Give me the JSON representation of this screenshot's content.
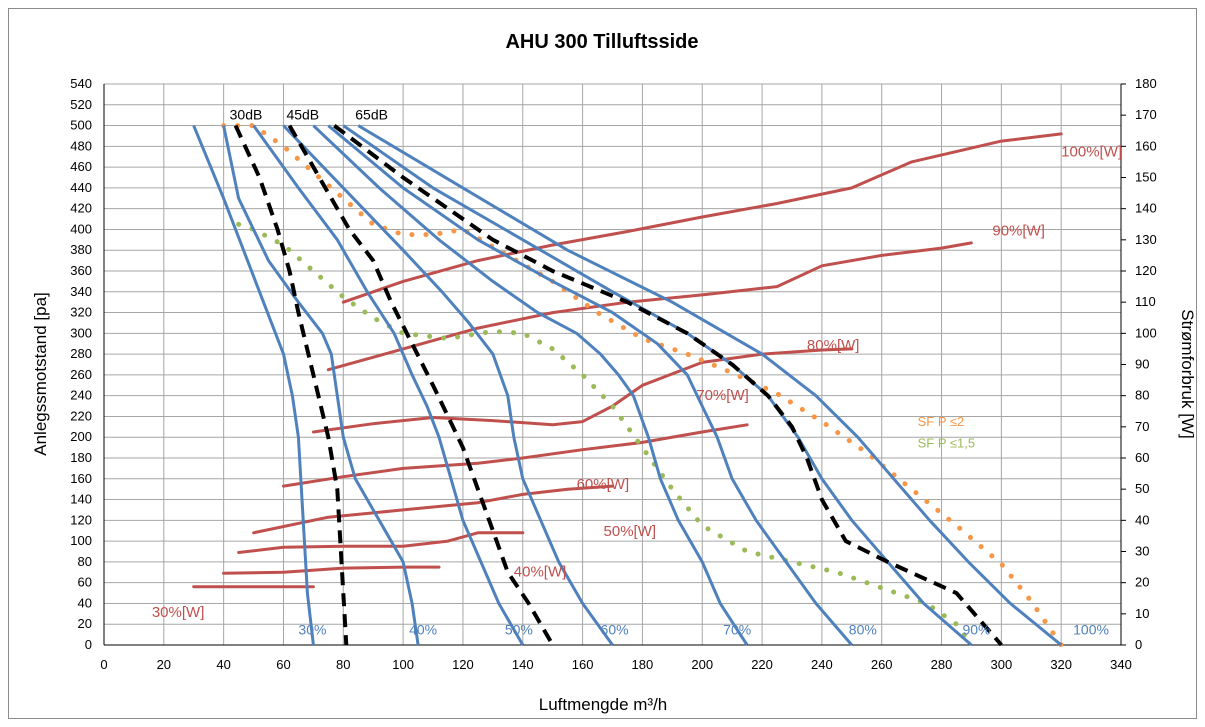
{
  "chart_data": {
    "type": "line",
    "title": "AHU 300  Tilluftsside",
    "xlabel": "Luftmengde m³/h",
    "ylabel": "Anlegssmotstand [pa]",
    "y2label": "Strømforbruk [W]",
    "xlim": [
      0,
      340
    ],
    "ylim": [
      0,
      540
    ],
    "y2lim": [
      0,
      180
    ],
    "xticks": [
      0,
      20,
      40,
      60,
      80,
      100,
      120,
      140,
      160,
      180,
      200,
      220,
      240,
      260,
      280,
      300,
      320,
      340
    ],
    "yticks": [
      0,
      20,
      40,
      60,
      80,
      100,
      120,
      140,
      160,
      180,
      200,
      220,
      240,
      260,
      280,
      300,
      320,
      340,
      360,
      380,
      400,
      420,
      440,
      460,
      480,
      500,
      520,
      540
    ],
    "y2ticks": [
      0,
      10,
      20,
      30,
      40,
      50,
      60,
      70,
      80,
      90,
      100,
      110,
      120,
      130,
      140,
      150,
      160,
      170,
      180
    ],
    "grid": true,
    "colors": {
      "fan": "#4f81bd",
      "power": "#c0504d",
      "noise": "#000000",
      "sfp2": "#f79646",
      "sfp15": "#9bbb59"
    },
    "fan_curves": [
      {
        "label": "30%",
        "label_x": 65,
        "label_y": 10,
        "points": [
          [
            30,
            500
          ],
          [
            40,
            430
          ],
          [
            52,
            340
          ],
          [
            60,
            280
          ],
          [
            63,
            240
          ],
          [
            65,
            200
          ],
          [
            66,
            150
          ],
          [
            67,
            100
          ],
          [
            68,
            50
          ],
          [
            70,
            0
          ]
        ]
      },
      {
        "label": "40%",
        "label_x": 102,
        "label_y": 10,
        "points": [
          [
            40,
            500
          ],
          [
            45,
            430
          ],
          [
            55,
            370
          ],
          [
            65,
            330
          ],
          [
            73,
            300
          ],
          [
            76,
            280
          ],
          [
            78,
            240
          ],
          [
            80,
            200
          ],
          [
            84,
            160
          ],
          [
            92,
            120
          ],
          [
            100,
            80
          ],
          [
            103,
            40
          ],
          [
            105,
            0
          ]
        ]
      },
      {
        "label": "50%",
        "label_x": 134,
        "label_y": 10,
        "points": [
          [
            50,
            500
          ],
          [
            65,
            440
          ],
          [
            78,
            390
          ],
          [
            88,
            340
          ],
          [
            97,
            300
          ],
          [
            103,
            260
          ],
          [
            108,
            230
          ],
          [
            112,
            200
          ],
          [
            116,
            160
          ],
          [
            120,
            120
          ],
          [
            126,
            80
          ],
          [
            132,
            40
          ],
          [
            140,
            0
          ]
        ]
      },
      {
        "label": "60%",
        "label_x": 166,
        "label_y": 10,
        "points": [
          [
            60,
            500
          ],
          [
            80,
            440
          ],
          [
            100,
            380
          ],
          [
            113,
            340
          ],
          [
            122,
            310
          ],
          [
            130,
            280
          ],
          [
            135,
            240
          ],
          [
            137,
            200
          ],
          [
            140,
            160
          ],
          [
            146,
            120
          ],
          [
            152,
            80
          ],
          [
            160,
            40
          ],
          [
            170,
            0
          ]
        ]
      },
      {
        "label": "70%",
        "label_x": 207,
        "label_y": 10,
        "points": [
          [
            70,
            500
          ],
          [
            92,
            440
          ],
          [
            112,
            390
          ],
          [
            130,
            350
          ],
          [
            145,
            320
          ],
          [
            158,
            300
          ],
          [
            166,
            280
          ],
          [
            172,
            260
          ],
          [
            177,
            240
          ],
          [
            182,
            200
          ],
          [
            186,
            160
          ],
          [
            192,
            120
          ],
          [
            200,
            80
          ],
          [
            206,
            40
          ],
          [
            215,
            0
          ]
        ]
      },
      {
        "label": "80%",
        "label_x": 249,
        "label_y": 10,
        "points": [
          [
            75,
            500
          ],
          [
            100,
            440
          ],
          [
            125,
            390
          ],
          [
            150,
            350
          ],
          [
            170,
            320
          ],
          [
            185,
            290
          ],
          [
            195,
            260
          ],
          [
            200,
            230
          ],
          [
            205,
            200
          ],
          [
            210,
            160
          ],
          [
            218,
            120
          ],
          [
            228,
            80
          ],
          [
            238,
            40
          ],
          [
            250,
            0
          ]
        ]
      },
      {
        "label": "90%",
        "label_x": 287,
        "label_y": 10,
        "points": [
          [
            80,
            500
          ],
          [
            110,
            440
          ],
          [
            140,
            390
          ],
          [
            170,
            340
          ],
          [
            195,
            300
          ],
          [
            210,
            270
          ],
          [
            222,
            240
          ],
          [
            232,
            200
          ],
          [
            240,
            160
          ],
          [
            250,
            120
          ],
          [
            262,
            80
          ],
          [
            274,
            40
          ],
          [
            290,
            0
          ]
        ]
      },
      {
        "label": "100%",
        "label_x": 324,
        "label_y": 10,
        "points": [
          [
            85,
            500
          ],
          [
            120,
            440
          ],
          [
            155,
            380
          ],
          [
            190,
            330
          ],
          [
            220,
            280
          ],
          [
            238,
            240
          ],
          [
            252,
            200
          ],
          [
            264,
            160
          ],
          [
            276,
            120
          ],
          [
            289,
            80
          ],
          [
            303,
            40
          ],
          [
            320,
            0
          ]
        ]
      }
    ],
    "noise_curves": [
      {
        "label": "30dB",
        "label_x": 42,
        "label_y": 506,
        "points": [
          [
            44,
            500
          ],
          [
            52,
            450
          ],
          [
            58,
            400
          ],
          [
            62,
            360
          ],
          [
            65,
            320
          ],
          [
            70,
            260
          ],
          [
            75,
            200
          ],
          [
            78,
            150
          ],
          [
            79,
            100
          ],
          [
            80,
            50
          ],
          [
            81,
            0
          ]
        ]
      },
      {
        "label": "45dB",
        "label_x": 61,
        "label_y": 506,
        "points": [
          [
            62,
            500
          ],
          [
            70,
            460
          ],
          [
            76,
            430
          ],
          [
            82,
            400
          ],
          [
            90,
            370
          ],
          [
            96,
            330
          ],
          [
            103,
            290
          ],
          [
            110,
            250
          ],
          [
            115,
            220
          ],
          [
            120,
            190
          ],
          [
            125,
            150
          ],
          [
            130,
            110
          ],
          [
            135,
            70
          ],
          [
            142,
            40
          ],
          [
            150,
            0
          ]
        ]
      },
      {
        "label": "65dB",
        "label_x": 84,
        "label_y": 506,
        "points": [
          [
            77,
            500
          ],
          [
            100,
            450
          ],
          [
            130,
            390
          ],
          [
            150,
            360
          ],
          [
            175,
            330
          ],
          [
            195,
            300
          ],
          [
            210,
            270
          ],
          [
            222,
            240
          ],
          [
            230,
            210
          ],
          [
            235,
            180
          ],
          [
            240,
            140
          ],
          [
            248,
            100
          ],
          [
            262,
            80
          ],
          [
            285,
            50
          ],
          [
            300,
            0
          ]
        ]
      }
    ],
    "power_curves": [
      {
        "label": "30%[W]",
        "label_x": 16,
        "label_y": 27,
        "points": [
          [
            30,
            56
          ],
          [
            45,
            56
          ],
          [
            60,
            56
          ],
          [
            70,
            56
          ]
        ]
      },
      {
        "label": "40%[W]",
        "label_x": 137,
        "label_y": 66,
        "points": [
          [
            40,
            69
          ],
          [
            60,
            70
          ],
          [
            80,
            74
          ],
          [
            100,
            75
          ],
          [
            112,
            75
          ]
        ]
      },
      {
        "label": "50%[W]",
        "label_x": 167,
        "label_y": 105,
        "points": [
          [
            45,
            89
          ],
          [
            60,
            94
          ],
          [
            80,
            95
          ],
          [
            100,
            95
          ],
          [
            115,
            100
          ],
          [
            125,
            108
          ],
          [
            140,
            108
          ]
        ]
      },
      {
        "label": "60%[W]",
        "label_x": 158,
        "label_y": 150,
        "points": [
          [
            50,
            108
          ],
          [
            75,
            123
          ],
          [
            100,
            130
          ],
          [
            125,
            137
          ],
          [
            140,
            145
          ],
          [
            155,
            150
          ],
          [
            170,
            153
          ]
        ]
      },
      {
        "label": "70%[W]",
        "label_x": 198,
        "label_y": 236,
        "points": [
          [
            60,
            153
          ],
          [
            80,
            162
          ],
          [
            100,
            170
          ],
          [
            125,
            175
          ],
          [
            140,
            180
          ],
          [
            160,
            188
          ],
          [
            180,
            195
          ],
          [
            200,
            205
          ],
          [
            215,
            212
          ]
        ]
      },
      {
        "label": "80%[W]",
        "label_x": 235,
        "label_y": 284,
        "points": [
          [
            70,
            205
          ],
          [
            90,
            213
          ],
          [
            110,
            219
          ],
          [
            130,
            216
          ],
          [
            150,
            212
          ],
          [
            160,
            215
          ],
          [
            170,
            230
          ],
          [
            180,
            250
          ],
          [
            200,
            272
          ],
          [
            220,
            280
          ],
          [
            240,
            284
          ],
          [
            250,
            285
          ]
        ]
      },
      {
        "label": "90%[W]",
        "label_x": 297,
        "label_y": 394,
        "points": [
          [
            75,
            265
          ],
          [
            100,
            285
          ],
          [
            125,
            305
          ],
          [
            150,
            320
          ],
          [
            175,
            330
          ],
          [
            200,
            337
          ],
          [
            225,
            345
          ],
          [
            240,
            365
          ],
          [
            260,
            375
          ],
          [
            280,
            382
          ],
          [
            290,
            387
          ]
        ]
      },
      {
        "label": "100%[W]",
        "label_x": 320,
        "label_y": 470,
        "points": [
          [
            80,
            330
          ],
          [
            100,
            350
          ],
          [
            125,
            370
          ],
          [
            150,
            385
          ],
          [
            175,
            398
          ],
          [
            200,
            412
          ],
          [
            225,
            425
          ],
          [
            250,
            440
          ],
          [
            270,
            465
          ],
          [
            300,
            485
          ],
          [
            320,
            492
          ]
        ]
      }
    ],
    "sfp_curves": [
      {
        "label": "SF  P ≤2",
        "label_x": 272,
        "label_y": 211,
        "color_key": "sfp2",
        "points": [
          [
            40,
            500
          ],
          [
            50,
            500
          ],
          [
            60,
            480
          ],
          [
            70,
            455
          ],
          [
            80,
            430
          ],
          [
            90,
            405
          ],
          [
            100,
            395
          ],
          [
            110,
            395
          ],
          [
            120,
            400
          ],
          [
            135,
            375
          ],
          [
            150,
            350
          ],
          [
            165,
            320
          ],
          [
            180,
            295
          ],
          [
            195,
            280
          ],
          [
            210,
            262
          ],
          [
            225,
            242
          ],
          [
            240,
            215
          ],
          [
            255,
            185
          ],
          [
            270,
            150
          ],
          [
            285,
            115
          ],
          [
            300,
            78
          ],
          [
            310,
            42
          ],
          [
            320,
            0
          ]
        ]
      },
      {
        "label": "SF  P ≤1,5",
        "label_x": 272,
        "label_y": 190,
        "color_key": "sfp15",
        "points": [
          [
            45,
            405
          ],
          [
            50,
            400
          ],
          [
            60,
            385
          ],
          [
            70,
            360
          ],
          [
            80,
            335
          ],
          [
            90,
            315
          ],
          [
            100,
            300
          ],
          [
            115,
            295
          ],
          [
            130,
            302
          ],
          [
            140,
            300
          ],
          [
            150,
            285
          ],
          [
            160,
            260
          ],
          [
            170,
            230
          ],
          [
            180,
            190
          ],
          [
            190,
            150
          ],
          [
            200,
            115
          ],
          [
            215,
            90
          ],
          [
            230,
            80
          ],
          [
            245,
            70
          ],
          [
            260,
            55
          ],
          [
            275,
            40
          ],
          [
            285,
            20
          ],
          [
            290,
            0
          ]
        ]
      }
    ]
  }
}
